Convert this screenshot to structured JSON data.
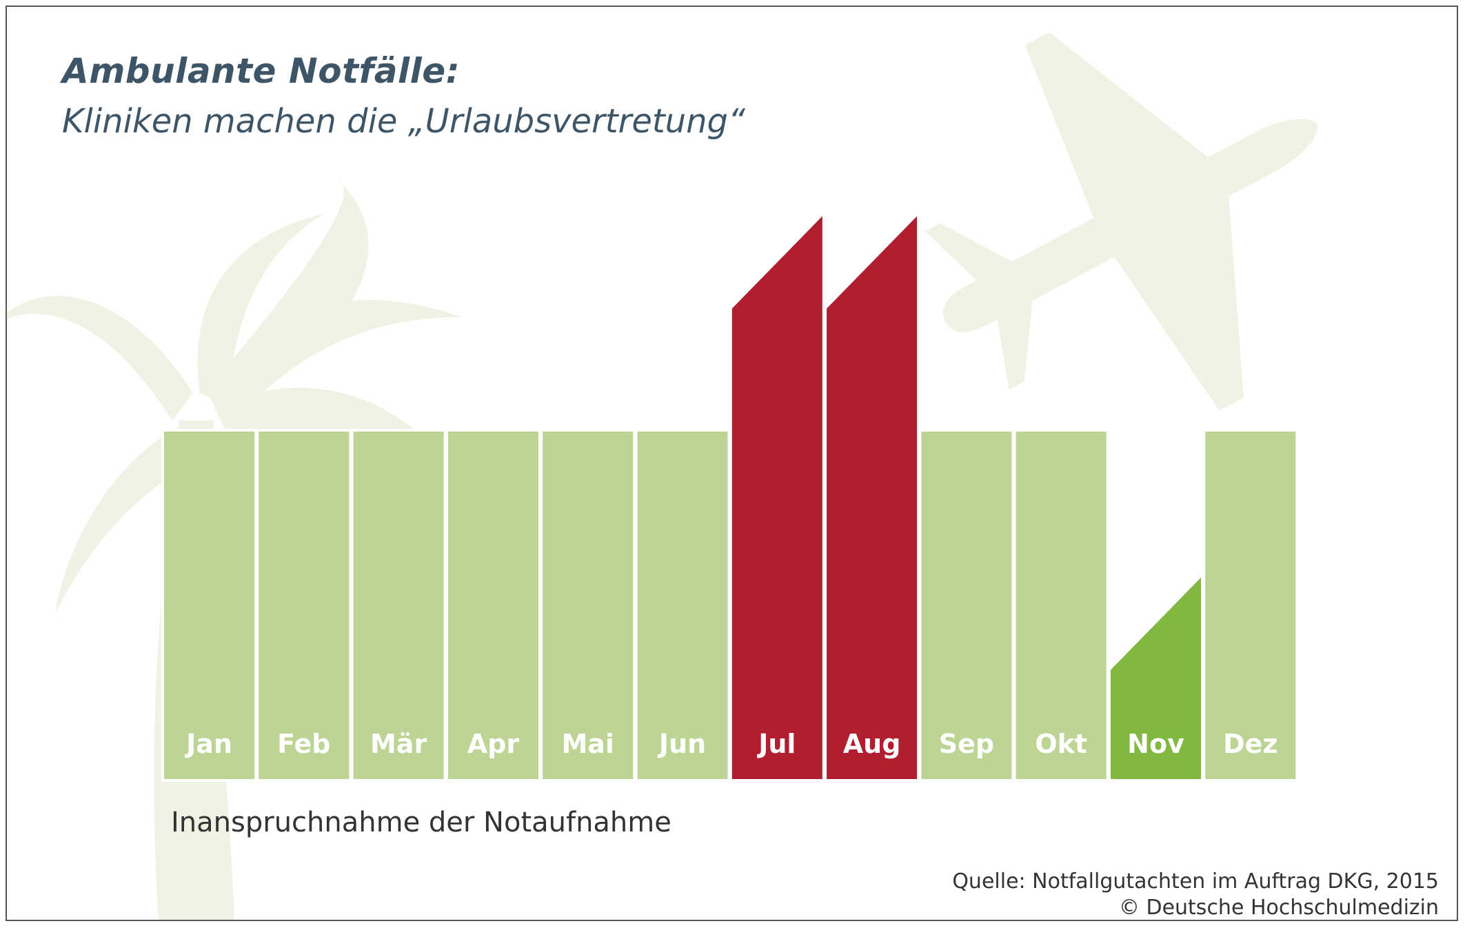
{
  "header": {
    "title": "Ambulante Notfälle:",
    "subtitle": "Kliniken machen die „Urlaubsvertretung“"
  },
  "chart_data": {
    "type": "bar",
    "categories": [
      "Jan",
      "Feb",
      "Mär",
      "Apr",
      "Mai",
      "Jun",
      "Jul",
      "Aug",
      "Sep",
      "Okt",
      "Nov",
      "Dez"
    ],
    "values": [
      100,
      100,
      100,
      100,
      100,
      100,
      162,
      162,
      100,
      100,
      58,
      100
    ],
    "highlight": [
      "normal",
      "normal",
      "normal",
      "normal",
      "normal",
      "normal",
      "high",
      "high",
      "normal",
      "normal",
      "low",
      "normal"
    ],
    "xlabel": "Inanspruchnahme der Notaufnahme",
    "ylabel": "",
    "ylim": [
      0,
      170
    ],
    "grid": false,
    "legend": "none",
    "colors": {
      "normal": "#bcd595",
      "high": "#b01e2f",
      "low": "#80b841",
      "label": "#ffffff",
      "background_decoration": "#eef3e3"
    }
  },
  "footer": {
    "source": "Quelle: Notfallgutachten im Auftrag DKG, 2015",
    "copyright": "© Deutsche Hochschulmedizin"
  },
  "decoration": {
    "icons": [
      "palm-tree-icon",
      "airplane-icon"
    ]
  }
}
